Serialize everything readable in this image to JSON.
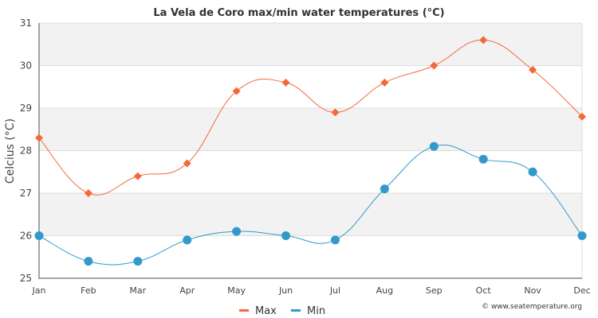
{
  "chart_data": {
    "type": "line",
    "title": "La Vela de Coro max/min water temperatures (°C)",
    "xlabel": "",
    "ylabel": "Celcius (°C)",
    "categories": [
      "Jan",
      "Feb",
      "Mar",
      "Apr",
      "May",
      "Jun",
      "Jul",
      "Aug",
      "Sep",
      "Oct",
      "Nov",
      "Dec"
    ],
    "ylim": [
      25,
      31
    ],
    "yticks": [
      25,
      26,
      27,
      28,
      29,
      30,
      31
    ],
    "grid": true,
    "legend_position": "bottom-center",
    "series": [
      {
        "name": "Max",
        "color": "#f4683a",
        "marker": "diamond",
        "values": [
          28.3,
          27.0,
          27.4,
          27.7,
          29.4,
          29.6,
          28.9,
          29.6,
          30.0,
          30.6,
          29.9,
          28.8
        ]
      },
      {
        "name": "Min",
        "color": "#3399cc",
        "marker": "circle",
        "values": [
          26.0,
          25.4,
          25.4,
          25.9,
          26.1,
          26.0,
          25.9,
          27.1,
          28.1,
          27.8,
          27.5,
          26.0
        ]
      }
    ],
    "credit": "© www.seatemperature.org"
  }
}
